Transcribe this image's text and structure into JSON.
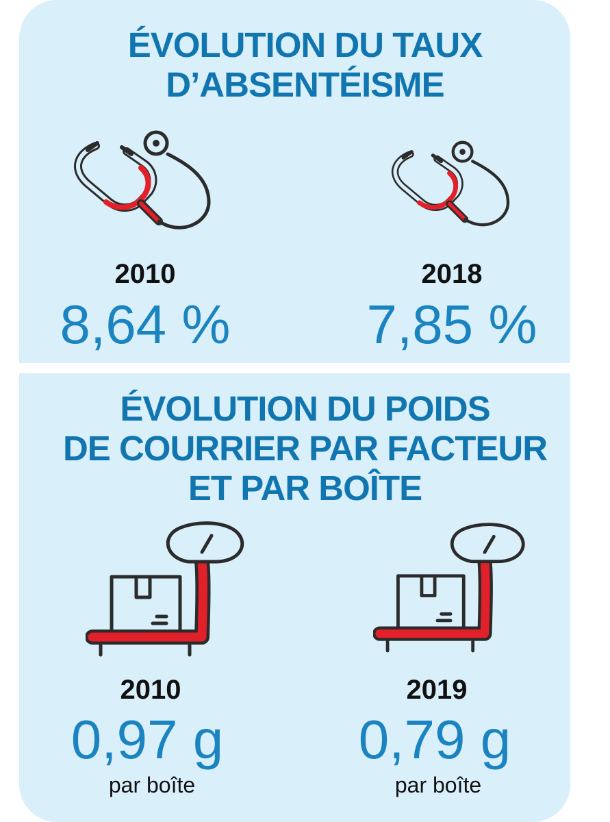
{
  "absenteeism": {
    "title": "ÉVOLUTION DU TAUX\nD’ABSENTÉISME",
    "items": [
      {
        "year": "2010",
        "value": "8,64 %"
      },
      {
        "year": "2018",
        "value": "7,85 %"
      }
    ]
  },
  "mail_weight": {
    "title": "ÉVOLUTION DU POIDS\nDE COURRIER PAR FACTEUR\nET PAR BOÎTE",
    "items": [
      {
        "year": "2010",
        "value": "0,97 g",
        "unit": "par boîte"
      },
      {
        "year": "2019",
        "value": "0,79 g",
        "unit": "par boîte"
      }
    ]
  },
  "colors": {
    "panel_background": "#d9eff9",
    "title_blue": "#1176b0",
    "value_blue": "#1b84c0",
    "icon_dark": "#2b2b2b",
    "icon_red": "#e2202a"
  },
  "icons": [
    "stethoscope-icon",
    "stethoscope-icon",
    "parcel-scale-icon",
    "parcel-scale-icon"
  ]
}
